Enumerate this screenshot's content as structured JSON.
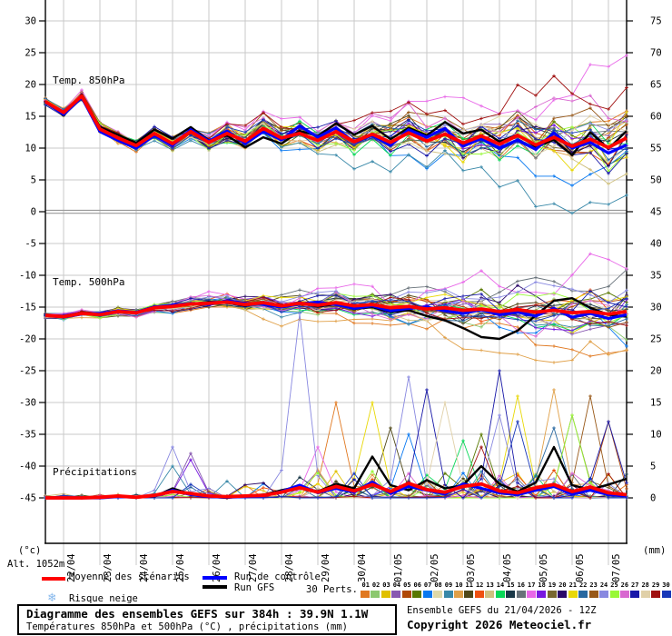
{
  "axis": {
    "left_unit": "(°c)",
    "right_unit": "(mm)",
    "altitude_label": "Alt. 1052m",
    "left_ticks": [
      30,
      25,
      20,
      15,
      10,
      5,
      0,
      -5,
      -10,
      -15,
      -20,
      -25,
      -30,
      -35,
      -40,
      -45
    ],
    "right_ticks": [
      75,
      70,
      65,
      60,
      55,
      50,
      45,
      40,
      35,
      30,
      25,
      20,
      15,
      10,
      5,
      0
    ],
    "dates": [
      "22/04",
      "23/04",
      "24/04",
      "25/04",
      "26/04",
      "27/04",
      "28/04",
      "29/04",
      "30/04",
      "01/05",
      "02/05",
      "03/05",
      "04/05",
      "05/05",
      "06/05",
      "07/05"
    ]
  },
  "legend": {
    "mean_label": "Moyenne des scénarios",
    "control_label": "Run de contrôle",
    "gfs_label": "Run GFS",
    "perts_label": "30 Perts.",
    "snow_label": "Risque neige",
    "snow_icon": "❄",
    "mean_color": "#ff0000",
    "control_color": "#0000ff",
    "gfs_color": "#000000"
  },
  "members": {
    "numbers": [
      "01",
      "02",
      "03",
      "04",
      "05",
      "06",
      "07",
      "08",
      "09",
      "10",
      "11",
      "12",
      "13",
      "14",
      "15",
      "16",
      "17",
      "18",
      "19",
      "20",
      "21",
      "22",
      "23",
      "24",
      "25",
      "26",
      "27",
      "28",
      "29",
      "30"
    ],
    "colors": [
      "#e07820",
      "#8cc870",
      "#e0c000",
      "#8858b0",
      "#b04808",
      "#587800",
      "#0878f0",
      "#ded8a8",
      "#3888a8",
      "#e0a048",
      "#504818",
      "#f05010",
      "#cfc080",
      "#08d858",
      "#1a3848",
      "#68727a",
      "#e868e8",
      "#7818e0",
      "#786830",
      "#2a0868",
      "#e8d808",
      "#2868a0",
      "#985818",
      "#8888e0",
      "#98f838",
      "#d868d0",
      "#1818a8",
      "#e0d0a8",
      "#a01010",
      "#1838b8"
    ]
  },
  "title_box": {
    "line1": "Diagramme des ensembles GEFS sur 384h : 39.9N 1.1W",
    "line2": "Températures 850hPa et 500hPa (°C) , précipitations (mm)"
  },
  "source_info": {
    "run": "Ensemble GEFS du 21/04/2026 - 12Z",
    "copyright": "Copyright 2026 Meteociel.fr"
  },
  "chart_data": [
    {
      "name": "temp850",
      "type": "line",
      "title": "Temp. 850hPa",
      "unit": "°C",
      "x_hours_step": 12,
      "x_hours_max": 384,
      "ylim_left_axis": [
        -45,
        30
      ],
      "grid": true,
      "mean": [
        17.3,
        15.6,
        18.2,
        13.0,
        11.6,
        10.4,
        12.3,
        10.7,
        12.6,
        10.9,
        12.3,
        11.1,
        13.1,
        11.6,
        12.3,
        11.2,
        12.6,
        11.0,
        12.2,
        10.9,
        12.4,
        11.1,
        12.2,
        10.8,
        11.9,
        10.6,
        12.0,
        10.5,
        11.7,
        10.3,
        11.4,
        10.1,
        11.6
      ],
      "control": [
        17.2,
        15.3,
        18.0,
        12.6,
        11.2,
        10.0,
        12.0,
        10.4,
        12.9,
        11.1,
        12.7,
        10.7,
        12.6,
        11.3,
        13.5,
        11.7,
        13.2,
        10.9,
        12.0,
        10.4,
        12.9,
        11.7,
        13.1,
        10.3,
        11.5,
        10.0,
        11.3,
        9.8,
        12.4,
        10.0,
        10.9,
        9.2,
        10.5
      ],
      "gfs": [
        17.3,
        15.1,
        18.4,
        13.3,
        12.1,
        10.8,
        12.9,
        11.5,
        13.3,
        11.2,
        12.0,
        10.1,
        11.7,
        10.7,
        12.7,
        11.9,
        13.9,
        12.1,
        13.5,
        11.4,
        13.2,
        12.0,
        14.1,
        12.3,
        12.9,
        11.0,
        12.1,
        10.2,
        11.3,
        8.9,
        12.5,
        9.9,
        12.7
      ],
      "spread_start": 0.5,
      "spread_end": 3.2
    },
    {
      "name": "temp500",
      "type": "line",
      "title": "Temp. 500hPa",
      "unit": "°C",
      "x_hours_step": 12,
      "x_hours_max": 384,
      "ylim_left_axis": [
        -45,
        30
      ],
      "grid": true,
      "mean": [
        -16.3,
        -16.5,
        -16.0,
        -16.2,
        -15.7,
        -15.9,
        -15.1,
        -14.9,
        -14.5,
        -14.4,
        -14.2,
        -14.6,
        -14.3,
        -14.8,
        -14.4,
        -14.7,
        -14.3,
        -14.8,
        -14.6,
        -15.1,
        -14.9,
        -15.3,
        -15.1,
        -15.5,
        -15.3,
        -15.7,
        -15.4,
        -15.8,
        -15.5,
        -15.9,
        -15.7,
        -16.1,
        -15.7
      ],
      "control": [
        -16.3,
        -16.6,
        -16.1,
        -16.0,
        -15.6,
        -15.8,
        -15.0,
        -14.7,
        -14.4,
        -14.6,
        -14.0,
        -14.4,
        -14.6,
        -15.0,
        -14.5,
        -14.2,
        -14.6,
        -15.2,
        -14.8,
        -15.6,
        -15.2,
        -15.0,
        -15.6,
        -16.0,
        -15.4,
        -16.2,
        -15.8,
        -16.4,
        -15.2,
        -16.6,
        -16.0,
        -16.8,
        -16.2
      ],
      "gfs": [
        -16.3,
        -16.4,
        -15.9,
        -16.1,
        -15.7,
        -15.8,
        -15.1,
        -14.7,
        -14.5,
        -14.2,
        -14.3,
        -14.8,
        -14.2,
        -15.0,
        -14.4,
        -14.9,
        -14.5,
        -15.3,
        -15.0,
        -15.8,
        -15.5,
        -16.4,
        -17.1,
        -18.3,
        -19.7,
        -20.0,
        -18.7,
        -16.3,
        -14.0,
        -13.6,
        -15.1,
        -16.2,
        -16.5
      ],
      "spread_start": 0.35,
      "spread_end": 2.8
    },
    {
      "name": "precip",
      "type": "line",
      "title": "Précipitations",
      "unit": "mm",
      "x_hours_step": 12,
      "x_hours_max": 384,
      "ylim_right_axis": [
        0,
        75
      ],
      "grid": true,
      "mean": [
        0,
        0,
        0,
        0.1,
        0.3,
        0.1,
        0.4,
        1.0,
        0.7,
        0.3,
        0.2,
        0.3,
        0.4,
        0.9,
        1.6,
        0.9,
        1.8,
        1.1,
        2.1,
        1.0,
        2.3,
        1.3,
        0.9,
        1.8,
        2.2,
        1.1,
        0.8,
        1.6,
        2.1,
        1.0,
        1.7,
        0.8,
        0.5
      ],
      "control": [
        0,
        0,
        0,
        0,
        0.2,
        0.1,
        0.3,
        1.2,
        0.5,
        0.2,
        0.1,
        0.2,
        0.3,
        1.0,
        2.0,
        0.8,
        1.5,
        0.9,
        2.5,
        0.7,
        1.8,
        1.2,
        0.6,
        2.2,
        1.5,
        0.8,
        0.5,
        1.2,
        1.8,
        0.6,
        1.2,
        0.5,
        0.3
      ],
      "gfs": [
        0,
        0,
        0,
        0,
        0.3,
        0.1,
        0.2,
        1.5,
        0.6,
        0.2,
        0,
        0.3,
        0.5,
        1.2,
        1.8,
        1.0,
        2.2,
        1.5,
        6.5,
        2.0,
        1.2,
        2.8,
        1.5,
        2.0,
        5.0,
        2.2,
        1.0,
        2.4,
        8.0,
        2.0,
        1.3,
        2.1,
        3.0
      ],
      "member_spikes": [
        {
          "member": 24,
          "step": 14,
          "mm": 29
        },
        {
          "member": 1,
          "step": 16,
          "mm": 15
        },
        {
          "member": 21,
          "step": 18,
          "mm": 15
        },
        {
          "member": 11,
          "step": 19,
          "mm": 11
        },
        {
          "member": 24,
          "step": 20,
          "mm": 19
        },
        {
          "member": 27,
          "step": 21,
          "mm": 17
        },
        {
          "member": 28,
          "step": 22,
          "mm": 15
        },
        {
          "member": 14,
          "step": 23,
          "mm": 9
        },
        {
          "member": 6,
          "step": 24,
          "mm": 10
        },
        {
          "member": 27,
          "step": 25,
          "mm": 20
        },
        {
          "member": 24,
          "step": 25,
          "mm": 13
        },
        {
          "member": 21,
          "step": 26,
          "mm": 16
        },
        {
          "member": 30,
          "step": 26,
          "mm": 12
        },
        {
          "member": 22,
          "step": 28,
          "mm": 11
        },
        {
          "member": 10,
          "step": 28,
          "mm": 17
        },
        {
          "member": 25,
          "step": 29,
          "mm": 13
        },
        {
          "member": 19,
          "step": 29,
          "mm": 13
        },
        {
          "member": 23,
          "step": 30,
          "mm": 16
        },
        {
          "member": 5,
          "step": 31,
          "mm": 12
        },
        {
          "member": 27,
          "step": 31,
          "mm": 12
        },
        {
          "member": 17,
          "step": 15,
          "mm": 8
        },
        {
          "member": 7,
          "step": 20,
          "mm": 10
        },
        {
          "member": 29,
          "step": 24,
          "mm": 8
        },
        {
          "member": 24,
          "step": 7,
          "mm": 8
        },
        {
          "member": 18,
          "step": 8,
          "mm": 6
        },
        {
          "member": 9,
          "step": 7,
          "mm": 5
        },
        {
          "member": 4,
          "step": 8,
          "mm": 7
        }
      ]
    }
  ]
}
